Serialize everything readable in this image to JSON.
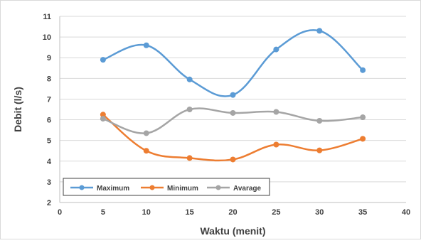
{
  "chart_data": {
    "type": "line",
    "title": "",
    "xlabel": "Waktu (menit)",
    "ylabel": "Debit (l/s)",
    "xlim": [
      0,
      40
    ],
    "ylim": [
      2,
      11
    ],
    "xticks": [
      0,
      5,
      10,
      15,
      20,
      25,
      30,
      35,
      40
    ],
    "yticks": [
      2,
      3,
      4,
      5,
      6,
      7,
      8,
      9,
      10,
      11
    ],
    "grid": "horizontal",
    "legend_position": "bottom-left",
    "x": [
      5,
      10,
      15,
      20,
      25,
      30,
      35
    ],
    "series": [
      {
        "name": "Maximum",
        "color": "#5B9BD5",
        "values": [
          8.9,
          9.6,
          7.95,
          7.2,
          9.4,
          10.3,
          8.4
        ]
      },
      {
        "name": "Minimum",
        "color": "#ED7D31",
        "values": [
          6.25,
          4.5,
          4.15,
          4.08,
          4.8,
          4.52,
          5.08
        ]
      },
      {
        "name": "Avarage",
        "color": "#A5A5A5",
        "values": [
          6.05,
          5.35,
          6.5,
          6.33,
          6.38,
          5.95,
          6.12
        ]
      }
    ]
  }
}
